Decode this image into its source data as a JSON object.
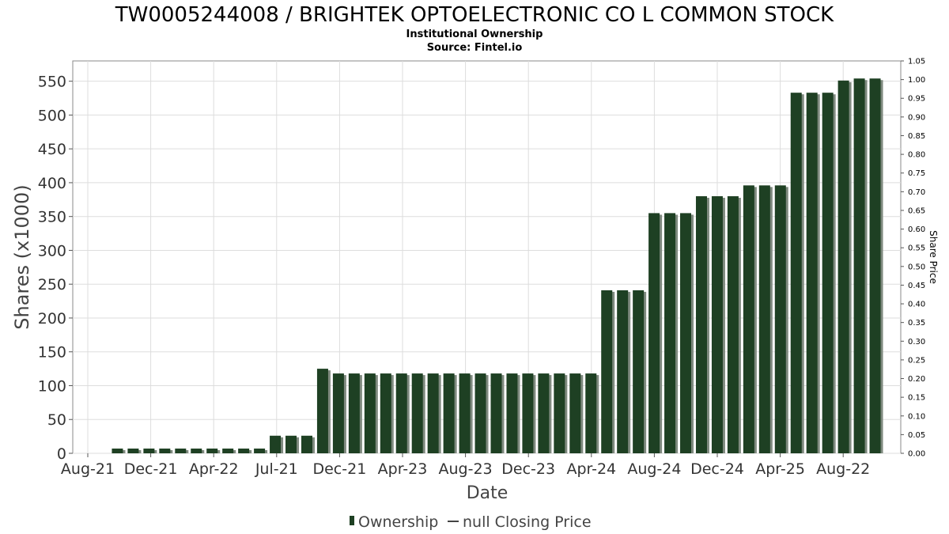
{
  "colors": {
    "bar": "#1e4023",
    "bar_shadow": "#7f8a7f",
    "grid": "#dddddd",
    "axis": "#555555",
    "text": "#333333"
  },
  "chart_data": {
    "type": "bar",
    "title": "TW0005244008 / BRIGHTEK OPTOELECTRONIC CO L COMMON STOCK",
    "subtitle": "Institutional Ownership",
    "source": "Source: Fintel.io",
    "xlabel": "Date",
    "ylabel": "Shares (x1000)",
    "y2label": "Share Price",
    "ylim": [
      0,
      580
    ],
    "yticks": [
      0,
      50,
      100,
      150,
      200,
      250,
      300,
      350,
      400,
      450,
      500,
      550
    ],
    "y2lim": [
      0,
      1.05
    ],
    "y2ticks": [
      "0.00",
      "0.05",
      "0.10",
      "0.15",
      "0.20",
      "0.25",
      "0.30",
      "0.35",
      "0.40",
      "0.45",
      "0.50",
      "0.55",
      "0.60",
      "0.65",
      "0.70",
      "0.75",
      "0.80",
      "0.85",
      "0.90",
      "0.95",
      "1.00",
      "1.05"
    ],
    "xticklabels": [
      "Aug-21",
      "Dec-21",
      "Apr-22",
      "Jul-21",
      "Dec-21",
      "Apr-23",
      "Aug-23",
      "Dec-23",
      "Apr-24",
      "Aug-24",
      "Dec-24",
      "Apr-25",
      "Aug-22"
    ],
    "grid": true,
    "legend": [
      "Ownership",
      "null Closing Price"
    ],
    "legend_position": "bottom",
    "series": [
      {
        "name": "Ownership",
        "values": [
          0,
          7,
          7,
          7,
          7,
          7,
          7,
          7,
          7,
          7,
          7,
          26,
          26,
          26,
          125,
          118,
          118,
          118,
          118,
          118,
          118,
          118,
          118,
          118,
          118,
          118,
          118,
          118,
          118,
          118,
          118,
          118,
          241,
          241,
          241,
          355,
          355,
          355,
          380,
          380,
          380,
          396,
          396,
          396,
          533,
          533,
          533,
          551,
          554,
          554
        ]
      }
    ]
  }
}
